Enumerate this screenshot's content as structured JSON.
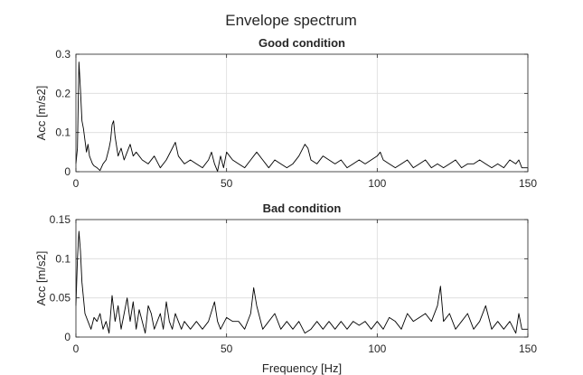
{
  "figure_title": "Envelope spectrum",
  "chart_data": [
    {
      "type": "line",
      "title": "Good condition",
      "xlabel": "",
      "ylabel": "Acc [m/s2]",
      "xlim": [
        0,
        150
      ],
      "ylim": [
        0,
        0.3
      ],
      "xticks": [
        0,
        50,
        100,
        150
      ],
      "xtick_labels": [
        "0",
        "50",
        "100",
        "150"
      ],
      "yticks": [
        0,
        0.1,
        0.2,
        0.3
      ],
      "ytick_labels": [
        "0",
        "0.1",
        "0.2",
        "0.3"
      ],
      "grid": true,
      "series": [
        {
          "color": "#000000",
          "x": [
            0,
            0.5,
            1.0,
            1.5,
            2.0,
            2.5,
            3.0,
            3.5,
            4.0,
            4.5,
            5.0,
            5.5,
            6.0,
            7.0,
            8.0,
            9.0,
            10.0,
            11.0,
            11.5,
            12.0,
            12.5,
            13.0,
            14.0,
            15.0,
            16.0,
            17.0,
            18.0,
            19.0,
            20.0,
            22.0,
            24.0,
            26.0,
            28.0,
            30.0,
            32.0,
            33.0,
            34.0,
            36.0,
            38.0,
            40.0,
            42.0,
            44.0,
            45.0,
            46.0,
            47.0,
            48.0,
            49.0,
            50.0,
            52.0,
            54.0,
            56.0,
            58.0,
            60.0,
            62.0,
            63.0,
            64.0,
            66.0,
            68.0,
            70.0,
            72.0,
            74.0,
            76.0,
            77.0,
            78.0,
            80.0,
            82.0,
            84.0,
            86.0,
            88.0,
            90.0,
            92.0,
            94.0,
            96.0,
            98.0,
            100.0,
            101.0,
            102.0,
            104.0,
            106.0,
            108.0,
            110.0,
            112.0,
            114.0,
            116.0,
            118.0,
            120.0,
            122.0,
            124.0,
            126.0,
            128.0,
            130.0,
            132.0,
            134.0,
            136.0,
            138.0,
            140.0,
            142.0,
            144.0,
            146.0,
            147.0,
            148.0,
            150.0
          ],
          "y": [
            0.02,
            0.06,
            0.28,
            0.21,
            0.13,
            0.11,
            0.08,
            0.05,
            0.07,
            0.04,
            0.03,
            0.02,
            0.015,
            0.01,
            0.003,
            0.02,
            0.03,
            0.06,
            0.08,
            0.12,
            0.13,
            0.09,
            0.04,
            0.06,
            0.03,
            0.05,
            0.07,
            0.04,
            0.05,
            0.03,
            0.02,
            0.04,
            0.01,
            0.03,
            0.06,
            0.075,
            0.04,
            0.02,
            0.03,
            0.02,
            0.01,
            0.03,
            0.05,
            0.02,
            0.001,
            0.04,
            0.01,
            0.05,
            0.03,
            0.02,
            0.01,
            0.03,
            0.05,
            0.03,
            0.02,
            0.01,
            0.03,
            0.02,
            0.01,
            0.02,
            0.04,
            0.07,
            0.06,
            0.03,
            0.02,
            0.04,
            0.03,
            0.02,
            0.03,
            0.01,
            0.02,
            0.03,
            0.02,
            0.03,
            0.04,
            0.05,
            0.03,
            0.02,
            0.01,
            0.02,
            0.03,
            0.01,
            0.02,
            0.03,
            0.01,
            0.02,
            0.01,
            0.02,
            0.03,
            0.01,
            0.02,
            0.02,
            0.03,
            0.02,
            0.01,
            0.02,
            0.01,
            0.03,
            0.02,
            0.03,
            0.01,
            0.01
          ]
        }
      ]
    },
    {
      "type": "line",
      "title": "Bad condition",
      "xlabel": "Frequency [Hz]",
      "ylabel": "Acc [m/s2]",
      "xlim": [
        0,
        150
      ],
      "ylim": [
        0,
        0.15
      ],
      "xticks": [
        0,
        50,
        100,
        150
      ],
      "xtick_labels": [
        "0",
        "50",
        "100",
        "150"
      ],
      "yticks": [
        0,
        0.05,
        0.1,
        0.15
      ],
      "ytick_labels": [
        "0",
        "0.05",
        "0.1",
        "0.15"
      ],
      "grid": true,
      "series": [
        {
          "color": "#000000",
          "x": [
            0,
            0.5,
            1.0,
            1.5,
            2.0,
            2.5,
            3.0,
            4.0,
            5.0,
            6.0,
            7.0,
            8.0,
            9.0,
            10.0,
            11.0,
            12.0,
            13.0,
            14.0,
            15.0,
            16.0,
            17.0,
            18.0,
            19.0,
            20.0,
            21.0,
            22.0,
            23.0,
            24.0,
            25.0,
            26.0,
            27.0,
            28.0,
            29.0,
            30.0,
            31.0,
            32.0,
            33.0,
            34.0,
            35.0,
            36.0,
            38.0,
            40.0,
            42.0,
            44.0,
            46.0,
            47.0,
            48.0,
            50.0,
            52.0,
            54.0,
            56.0,
            58.0,
            59.0,
            60.0,
            62.0,
            64.0,
            66.0,
            68.0,
            70.0,
            72.0,
            74.0,
            76.0,
            78.0,
            80.0,
            82.0,
            84.0,
            86.0,
            88.0,
            90.0,
            92.0,
            94.0,
            96.0,
            98.0,
            100.0,
            102.0,
            104.0,
            106.0,
            108.0,
            110.0,
            112.0,
            114.0,
            116.0,
            118.0,
            120.0,
            121.0,
            122.0,
            124.0,
            126.0,
            128.0,
            130.0,
            132.0,
            134.0,
            136.0,
            138.0,
            140.0,
            142.0,
            144.0,
            146.0,
            147.0,
            148.0,
            150.0
          ],
          "y": [
            0.04,
            0.1,
            0.135,
            0.11,
            0.07,
            0.05,
            0.03,
            0.02,
            0.01,
            0.025,
            0.02,
            0.03,
            0.01,
            0.02,
            0.005,
            0.053,
            0.02,
            0.04,
            0.01,
            0.03,
            0.05,
            0.02,
            0.045,
            0.01,
            0.035,
            0.02,
            0.005,
            0.04,
            0.03,
            0.01,
            0.02,
            0.03,
            0.01,
            0.045,
            0.02,
            0.01,
            0.03,
            0.02,
            0.01,
            0.02,
            0.01,
            0.02,
            0.01,
            0.02,
            0.045,
            0.02,
            0.01,
            0.025,
            0.02,
            0.02,
            0.01,
            0.03,
            0.063,
            0.04,
            0.01,
            0.02,
            0.03,
            0.01,
            0.02,
            0.01,
            0.02,
            0.005,
            0.01,
            0.02,
            0.01,
            0.02,
            0.01,
            0.02,
            0.01,
            0.02,
            0.015,
            0.02,
            0.01,
            0.02,
            0.01,
            0.025,
            0.02,
            0.01,
            0.03,
            0.02,
            0.025,
            0.03,
            0.02,
            0.04,
            0.065,
            0.02,
            0.03,
            0.01,
            0.02,
            0.03,
            0.01,
            0.02,
            0.04,
            0.01,
            0.02,
            0.01,
            0.02,
            0.005,
            0.03,
            0.01,
            0.01
          ]
        }
      ]
    }
  ]
}
